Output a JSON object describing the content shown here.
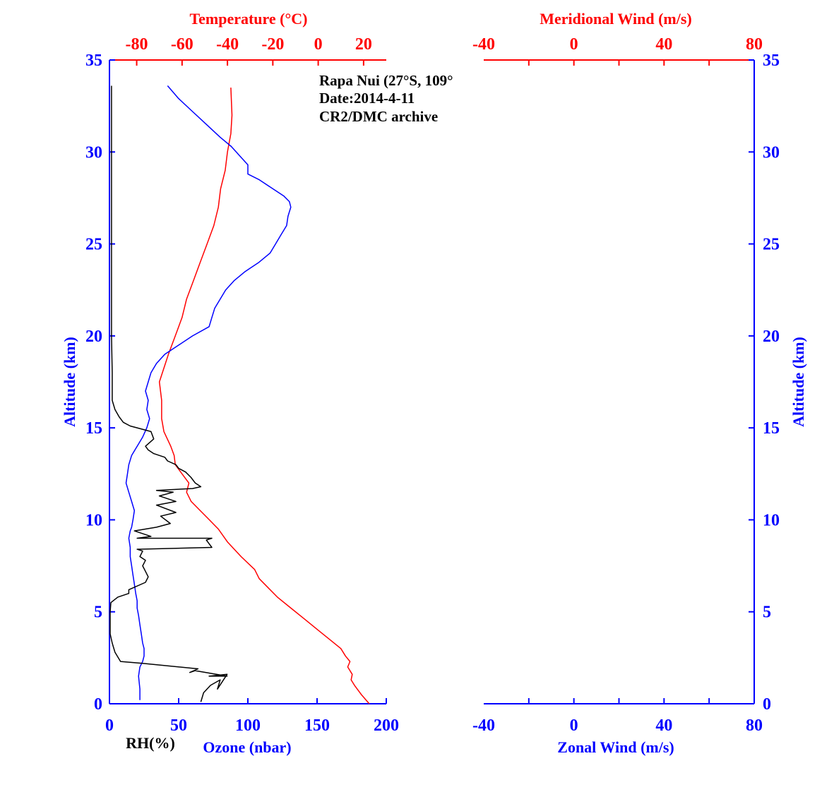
{
  "colors": {
    "blue": "#0000ff",
    "red": "#ff0000",
    "black": "#000000"
  },
  "chart_data": [
    {
      "type": "line",
      "panel": "left",
      "annotation_lines": [
        "Rapa Nui (27°S, 109°",
        "Date:2014-4-11",
        "CR2/DMC archive"
      ],
      "ylabel": "Altitude (km)",
      "ylim": [
        0,
        35
      ],
      "y_ticks": [
        0,
        5,
        10,
        15,
        20,
        25,
        30,
        35
      ],
      "top_axis": {
        "label": "Temperature (°C)",
        "lim": [
          -92,
          30
        ],
        "ticks": [
          -80,
          -60,
          -40,
          -20,
          0,
          20
        ]
      },
      "bottom_axis": {
        "label": "Ozone (nbar)",
        "lim": [
          0,
          200
        ],
        "ticks": [
          0,
          50,
          100,
          150,
          200
        ]
      },
      "bottom_axis_secondary_label": "RH(%)",
      "series": [
        {
          "color": "#ff0000",
          "axis": "top",
          "x": [
            22.5,
            19,
            16,
            14.5,
            15,
            13,
            14,
            12,
            10,
            5,
            0,
            -6,
            -12,
            -18,
            -22,
            -26,
            -28,
            -34,
            -40,
            -44,
            -48,
            -52,
            -56,
            -58,
            -57,
            -60,
            -63,
            -63.5,
            -65,
            -68,
            -69,
            -69,
            -70,
            -66,
            -63,
            -60,
            -58,
            -55,
            -52,
            -49,
            -46,
            -44,
            -43,
            -41,
            -40,
            -38.5,
            -38,
            -38.5
          ],
          "y": [
            0,
            0.5,
            1,
            1.3,
            1.6,
            2,
            2.3,
            2.6,
            3,
            3.5,
            4,
            4.6,
            5.2,
            5.8,
            6.3,
            6.8,
            7.3,
            8,
            8.8,
            9.5,
            10,
            10.5,
            11,
            11.5,
            12,
            12.5,
            13,
            13.5,
            14,
            14.8,
            15.5,
            16.5,
            17.5,
            19,
            20,
            21,
            22,
            23,
            24,
            25,
            26,
            27,
            28,
            29,
            30,
            31,
            32,
            33.5
          ]
        },
        {
          "color": "#0000ff",
          "axis": "bottom",
          "x": [
            22,
            22,
            21,
            22,
            24,
            25,
            25,
            24,
            23,
            22,
            21,
            20,
            20,
            19,
            18,
            17,
            16,
            15,
            15,
            14,
            15,
            16,
            17,
            18,
            16,
            14,
            12,
            13,
            14,
            16,
            20,
            24,
            27,
            29,
            27,
            28,
            26,
            28,
            30,
            34,
            40,
            50,
            60,
            72,
            74,
            76,
            80,
            84,
            90,
            98,
            108,
            116,
            120,
            124,
            128,
            129,
            131,
            130,
            126,
            118,
            108,
            100,
            100,
            94,
            88,
            80,
            70,
            60,
            50,
            42
          ],
          "y": [
            0.2,
            0.8,
            1.5,
            2.0,
            2.3,
            2.6,
            3.0,
            3.3,
            3.8,
            4.3,
            4.8,
            5.2,
            5.6,
            6.0,
            6.5,
            7.0,
            7.5,
            8.0,
            8.5,
            9.0,
            9.4,
            9.6,
            10.0,
            10.5,
            11.0,
            11.5,
            12.0,
            12.5,
            13.0,
            13.5,
            14.0,
            14.5,
            15.0,
            15.5,
            16.0,
            16.5,
            17.0,
            17.5,
            18.0,
            18.5,
            19.0,
            19.5,
            20.0,
            20.5,
            21.0,
            21.5,
            22.0,
            22.5,
            23.0,
            23.5,
            24.0,
            24.5,
            25.0,
            25.5,
            26.0,
            26.5,
            27.0,
            27.3,
            27.6,
            28.0,
            28.5,
            28.8,
            29.3,
            29.8,
            30.3,
            30.8,
            31.5,
            32.2,
            32.9,
            33.6
          ]
        },
        {
          "color": "#000000",
          "axis": "bottom",
          "x": [
            66,
            68,
            73,
            80,
            78,
            85,
            72,
            85,
            62,
            58,
            64,
            24,
            8,
            4,
            2,
            0.5,
            0.5,
            0.5,
            1,
            6,
            14,
            14,
            26,
            28,
            26,
            24,
            26,
            22,
            24,
            20,
            74,
            70,
            74,
            20,
            30,
            18,
            34,
            44,
            37,
            48,
            34,
            48,
            36,
            46,
            34,
            60,
            66,
            62,
            59,
            55,
            50,
            48,
            42,
            40,
            32,
            28,
            26,
            32,
            30,
            15,
            10,
            7,
            4,
            2,
            2,
            2,
            1.5,
            1.5,
            1.5,
            1.5
          ],
          "y": [
            0.1,
            0.6,
            1.0,
            1.3,
            0.8,
            1.6,
            1.5,
            1.5,
            1.8,
            1.7,
            1.9,
            2.2,
            2.3,
            2.8,
            3.3,
            3.8,
            4.3,
            5.0,
            5.5,
            5.8,
            6.0,
            6.2,
            6.6,
            6.9,
            7.2,
            7.5,
            7.8,
            8.0,
            8.3,
            8.4,
            8.5,
            8.9,
            9.0,
            9.0,
            9.1,
            9.4,
            9.6,
            9.8,
            10.2,
            10.4,
            10.8,
            11.0,
            11.3,
            11.5,
            11.6,
            11.7,
            11.8,
            12.0,
            12.3,
            12.6,
            12.8,
            13.0,
            13.2,
            13.4,
            13.6,
            13.8,
            14.0,
            14.4,
            14.8,
            15.1,
            15.3,
            15.6,
            16.0,
            16.5,
            17.0,
            18.0,
            20.0,
            25.0,
            30.0,
            33.6
          ]
        }
      ]
    },
    {
      "type": "line",
      "panel": "right",
      "ylabel": "Altitude (km)",
      "ylim": [
        0,
        35
      ],
      "y_ticks": [
        0,
        5,
        10,
        15,
        20,
        25,
        30,
        35
      ],
      "top_axis": {
        "label": "Meridional Wind (m/s)",
        "lim": [
          -40,
          80
        ],
        "ticks": [
          -40,
          0,
          40,
          80
        ]
      },
      "bottom_axis": {
        "label": "Zonal Wind (m/s)",
        "lim": [
          -40,
          80
        ],
        "ticks": [
          -40,
          0,
          40,
          80
        ]
      },
      "series": []
    }
  ]
}
